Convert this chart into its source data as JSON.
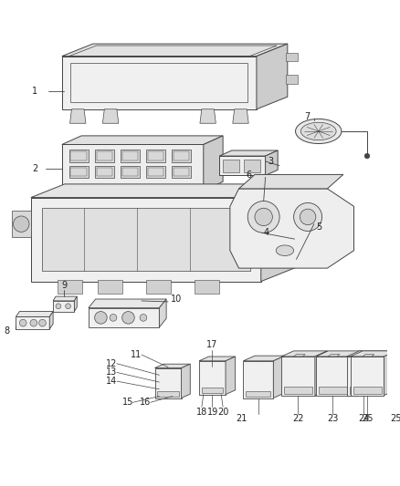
{
  "bg_color": "#ffffff",
  "line_color": "#444444",
  "text_color": "#222222",
  "fs": 7,
  "lw": 0.7
}
